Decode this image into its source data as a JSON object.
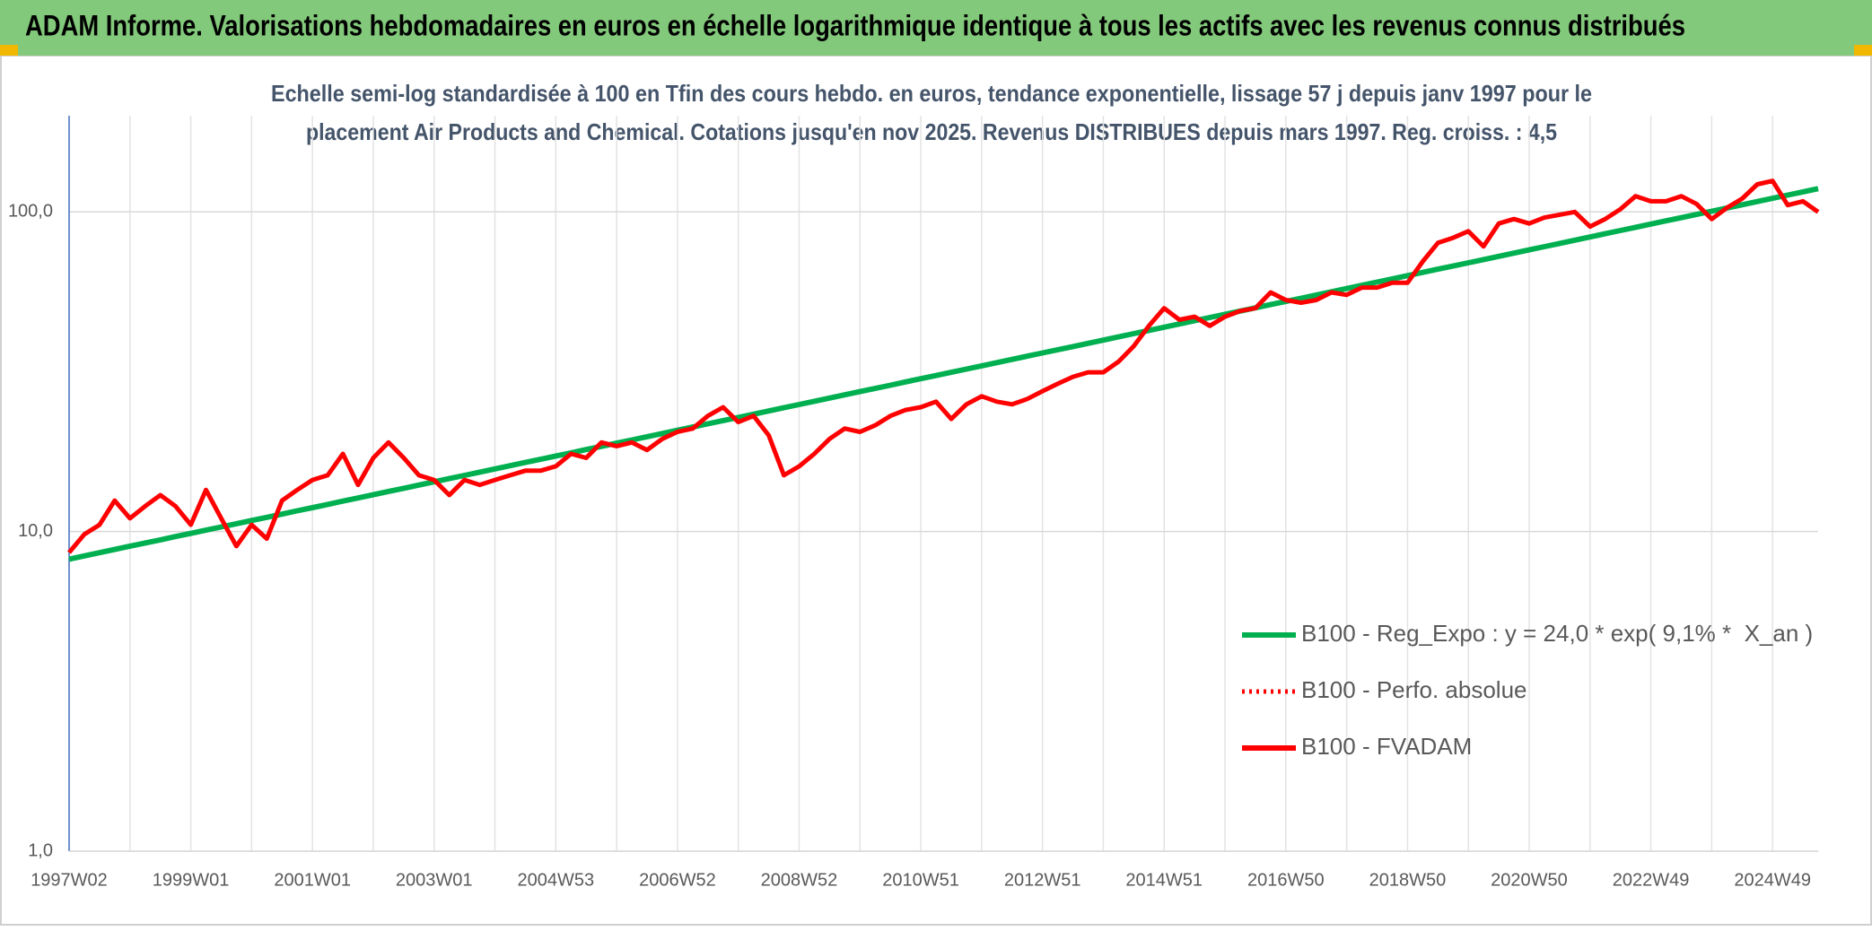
{
  "chart_data": {
    "type": "line",
    "title": "ADAM Informe. Valorisations hebdomadaires en euros en échelle logarithmique identique à tous les actifs avec les revenus connus distribués",
    "subtitle": [
      "Echelle semi-log standardisée à 100 en Tfin des cours hebdo. en euros, tendance exponentielle, lissage 57 j depuis janv 1997 pour le",
      "placement Air Products and Chemical. Cotations jusqu'en nov 2025. Revenus DISTRIBUES depuis mars 1997. Reg. croiss. : 4,5"
    ],
    "log_scale": true,
    "ylim": [
      1,
      200
    ],
    "yticks": [
      {
        "value": 1,
        "label": "1,0"
      },
      {
        "value": 10,
        "label": "10,0"
      },
      {
        "value": 100,
        "label": "100,0"
      }
    ],
    "grid": true,
    "legend": "right",
    "categories": [
      "1997W02",
      null,
      null,
      null,
      null,
      null,
      null,
      null,
      "1999W01",
      null,
      null,
      null,
      null,
      null,
      null,
      null,
      "2001W01",
      null,
      null,
      null,
      null,
      null,
      null,
      null,
      "2003W01",
      null,
      null,
      null,
      null,
      null,
      null,
      null,
      "2004W53",
      null,
      null,
      null,
      null,
      null,
      null,
      null,
      "2006W52",
      null,
      null,
      null,
      null,
      null,
      null,
      null,
      "2008W52",
      null,
      null,
      null,
      null,
      null,
      null,
      null,
      "2010W51",
      null,
      null,
      null,
      null,
      null,
      null,
      null,
      "2012W51",
      null,
      null,
      null,
      null,
      null,
      null,
      null,
      "2014W51",
      null,
      null,
      null,
      null,
      null,
      null,
      null,
      "2016W50",
      null,
      null,
      null,
      null,
      null,
      null,
      null,
      "2018W50",
      null,
      null,
      null,
      null,
      null,
      null,
      null,
      "2020W50",
      null,
      null,
      null,
      null,
      null,
      null,
      null,
      "2022W49",
      null,
      null,
      null,
      null,
      null,
      null,
      null,
      "2024W49",
      null,
      null,
      null
    ],
    "series": [
      {
        "name": "B100 - Reg_Expo : y = 24,0 * exp( 9,1% *  X_an )",
        "color": "#00b050",
        "style": "solid",
        "values": [
          8.2,
          8.39,
          8.59,
          8.79,
          9.0,
          9.21,
          9.42,
          9.65,
          9.87,
          10.1,
          10.34,
          10.58,
          10.83,
          11.08,
          11.34,
          11.61,
          11.88,
          12.16,
          12.45,
          12.74,
          13.04,
          13.35,
          13.66,
          13.98,
          14.31,
          14.64,
          14.99,
          15.34,
          15.7,
          16.07,
          16.45,
          16.83,
          17.23,
          17.63,
          18.05,
          18.47,
          18.9,
          19.35,
          19.8,
          20.27,
          20.74,
          21.23,
          21.73,
          22.24,
          22.76,
          23.29,
          23.84,
          24.4,
          24.97,
          25.56,
          26.16,
          26.77,
          27.4,
          28.04,
          28.7,
          29.38,
          30.07,
          30.77,
          31.49,
          32.23,
          32.99,
          33.77,
          34.56,
          35.37,
          36.2,
          37.05,
          37.92,
          38.81,
          39.72,
          40.65,
          41.61,
          42.59,
          43.59,
          44.61,
          45.66,
          46.73,
          47.83,
          48.95,
          50.1,
          51.28,
          52.48,
          53.71,
          54.97,
          56.26,
          57.58,
          58.94,
          60.32,
          61.74,
          63.19,
          64.67,
          66.19,
          67.74,
          69.33,
          70.96,
          72.63,
          74.33,
          76.08,
          77.87,
          79.7,
          81.57,
          83.48,
          85.44,
          87.45,
          89.5,
          91.61,
          93.76,
          95.96,
          98.21,
          100.52,
          102.88,
          105.3,
          107.77,
          110.3,
          112.89,
          115.54,
          118.26
        ]
      },
      {
        "name": "B100 - Perfo. absolue",
        "color": "#ff0000",
        "style": "dotted",
        "values": [
          8.6,
          9.8,
          10.5,
          12.5,
          11,
          12,
          13,
          12,
          10.5,
          13.5,
          11,
          9,
          10.5,
          9.5,
          12.5,
          13.5,
          14.5,
          15,
          17.5,
          14,
          17,
          19,
          17,
          15,
          14.5,
          13,
          14.5,
          14,
          14.5,
          15,
          15.5,
          15.5,
          16,
          17.5,
          17,
          19,
          18.5,
          19,
          18,
          19.5,
          20.5,
          21,
          23,
          24.5,
          22,
          23,
          20,
          15,
          16,
          17.5,
          19.5,
          21,
          20.5,
          21.5,
          23,
          24,
          24.5,
          25.5,
          22.5,
          25,
          26.5,
          25.5,
          25,
          26,
          27.5,
          29,
          30.5,
          31.5,
          31.5,
          34,
          38,
          44,
          50,
          46,
          47,
          44,
          47,
          49,
          50,
          56,
          53,
          52,
          53,
          56,
          55,
          58,
          58,
          60,
          60,
          70,
          80,
          83,
          87,
          78,
          92,
          95,
          92,
          96,
          98,
          100,
          90,
          95,
          102,
          112,
          108,
          108,
          112,
          106,
          95,
          103,
          110,
          122,
          125,
          105,
          108,
          100
        ]
      },
      {
        "name": "B100 - FVADAM",
        "color": "#ff0000",
        "style": "solid",
        "values": [
          8.6,
          9.8,
          10.5,
          12.5,
          11,
          12,
          13,
          12,
          10.5,
          13.5,
          11,
          9,
          10.5,
          9.5,
          12.5,
          13.5,
          14.5,
          15,
          17.5,
          14,
          17,
          19,
          17,
          15,
          14.5,
          13,
          14.5,
          14,
          14.5,
          15,
          15.5,
          15.5,
          16,
          17.5,
          17,
          19,
          18.5,
          19,
          18,
          19.5,
          20.5,
          21,
          23,
          24.5,
          22,
          23,
          20,
          15,
          16,
          17.5,
          19.5,
          21,
          20.5,
          21.5,
          23,
          24,
          24.5,
          25.5,
          22.5,
          25,
          26.5,
          25.5,
          25,
          26,
          27.5,
          29,
          30.5,
          31.5,
          31.5,
          34,
          38,
          44,
          50,
          46,
          47,
          44,
          47,
          49,
          50,
          56,
          53,
          52,
          53,
          56,
          55,
          58,
          58,
          60,
          60,
          70,
          80,
          83,
          87,
          78,
          92,
          95,
          92,
          96,
          98,
          100,
          90,
          95,
          102,
          112,
          108,
          108,
          112,
          106,
          95,
          103,
          110,
          122,
          125,
          105,
          108,
          100
        ]
      }
    ]
  }
}
